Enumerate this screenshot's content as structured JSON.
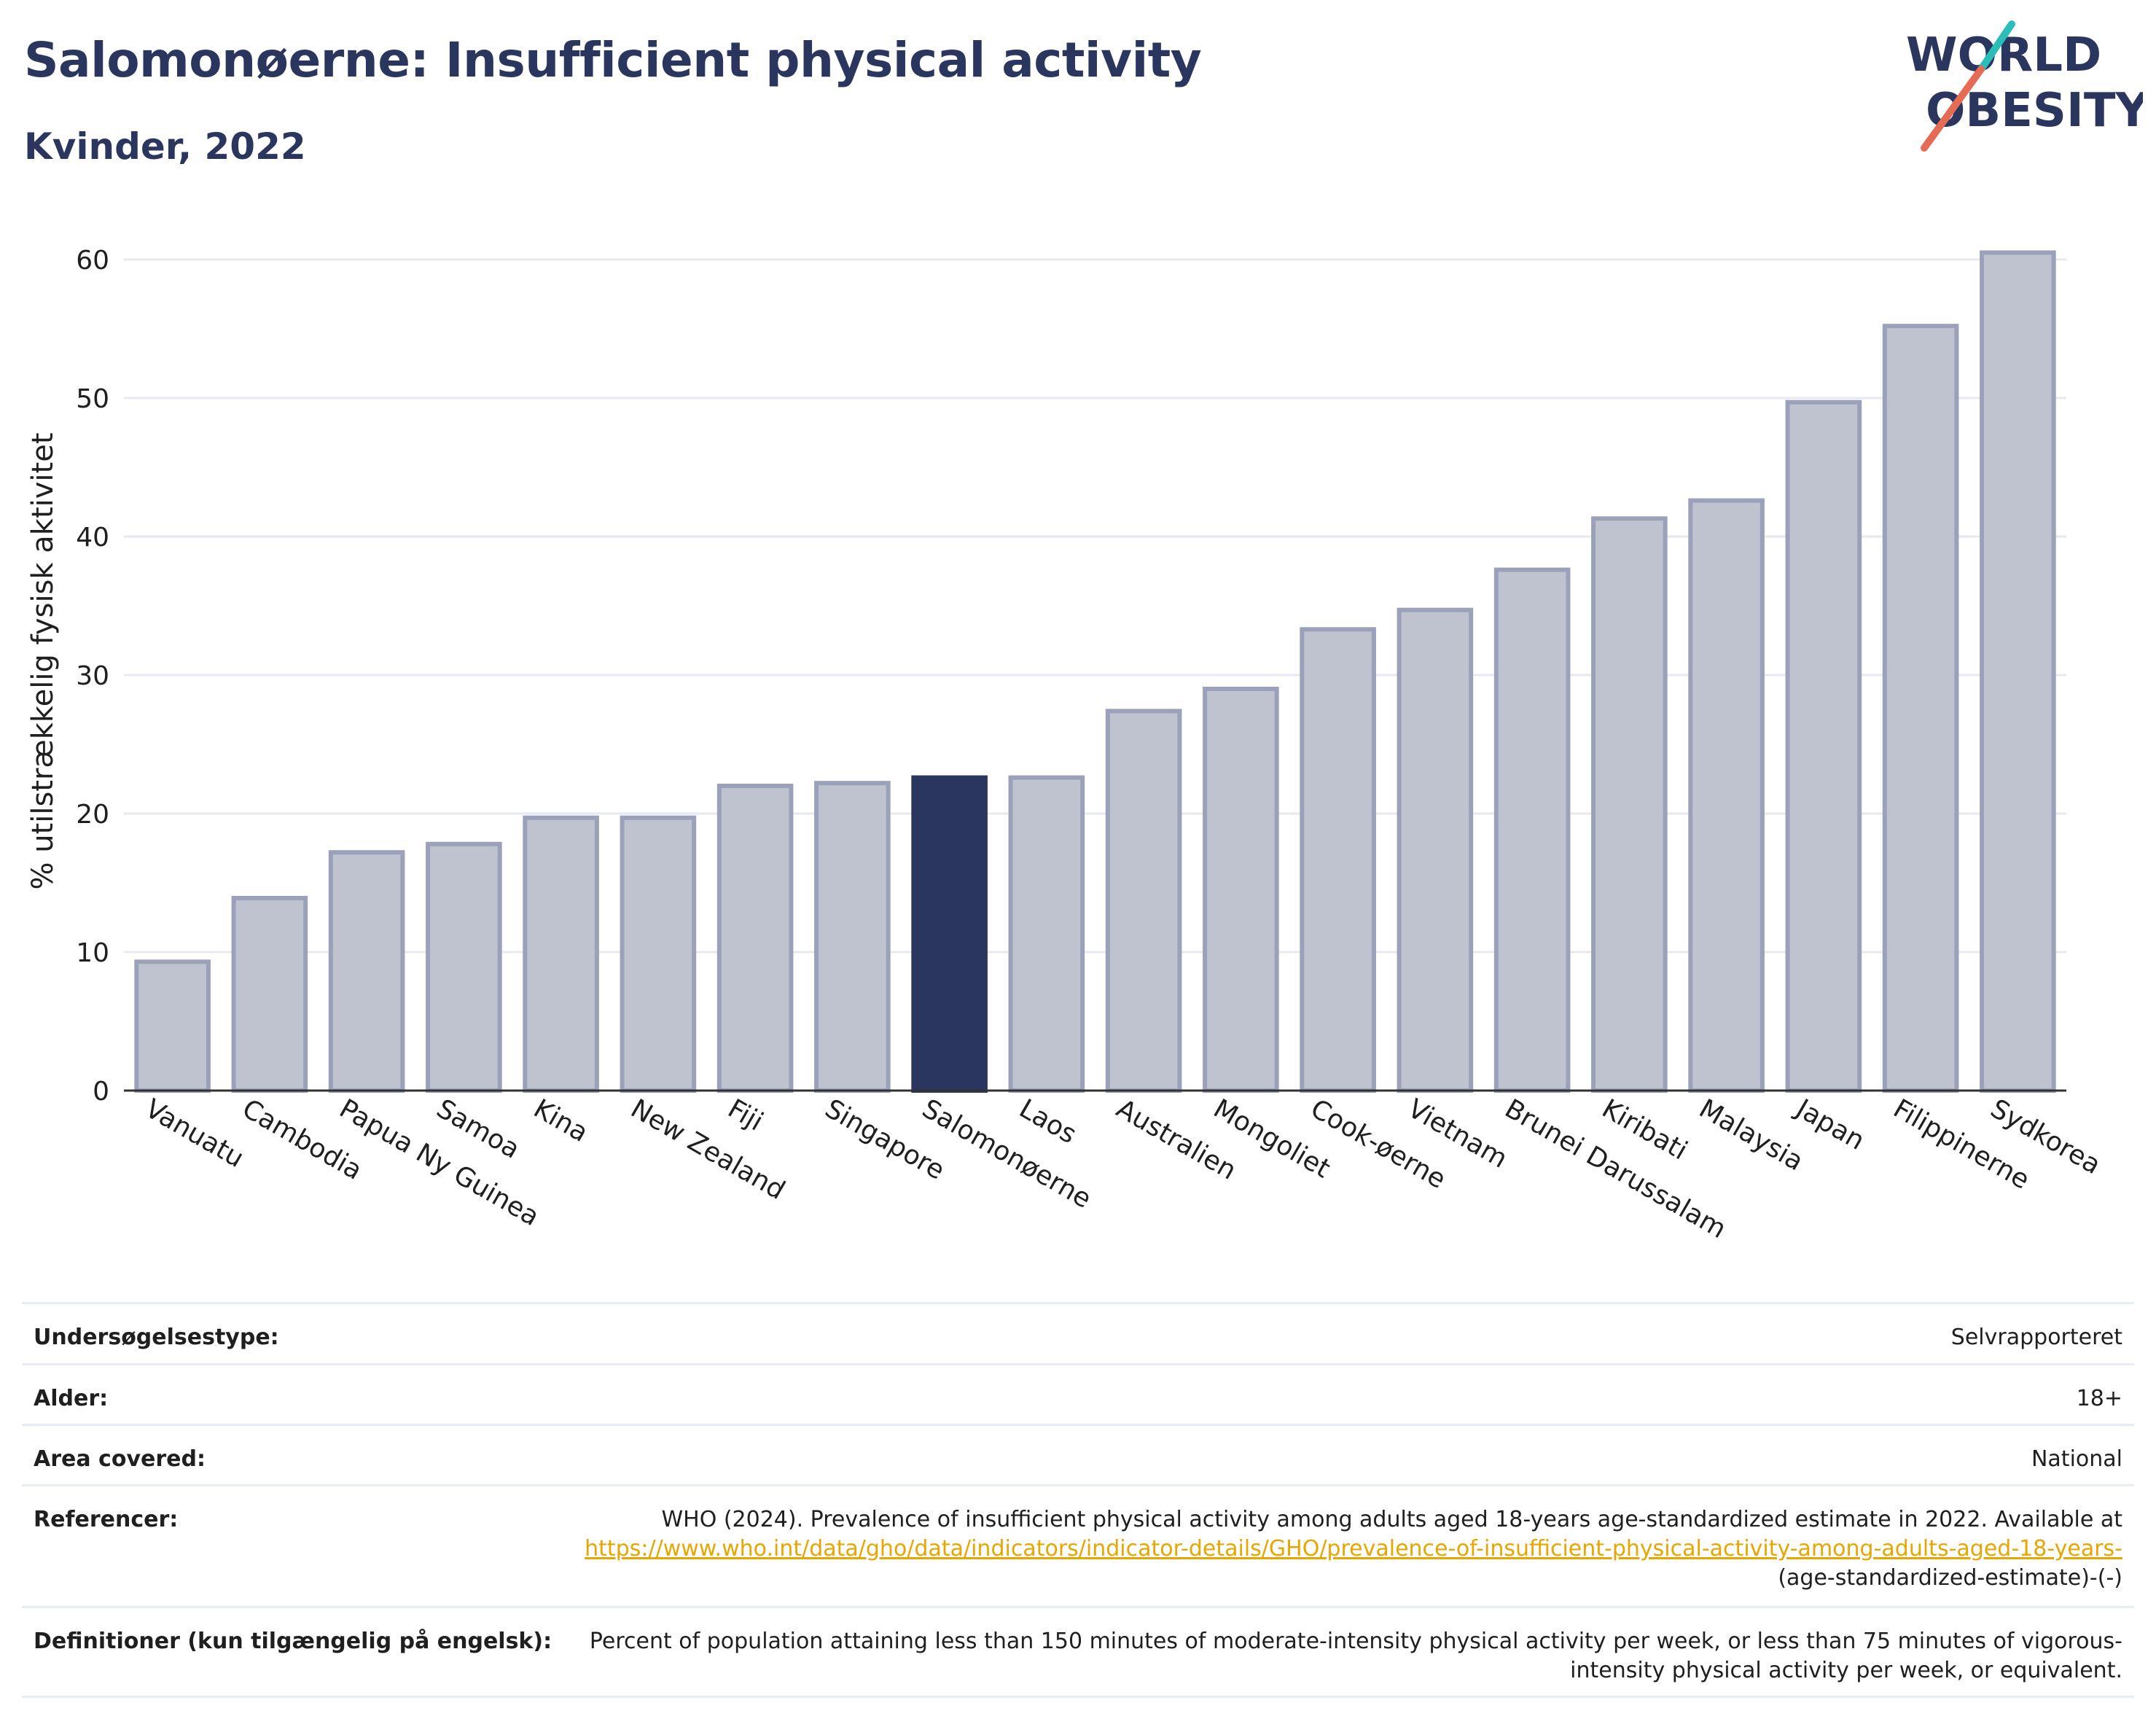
{
  "header": {
    "title": "Salomonøerne: Insufficient physical activity",
    "subtitle": "Kvinder, 2022"
  },
  "logo": {
    "line1": "WORLD",
    "line2": "OBESITY",
    "accent_colors": [
      "#2bbdb8",
      "#e56b54"
    ]
  },
  "colors": {
    "text_primary": "#2b365f",
    "bar_default": "#bfc3d0",
    "bar_border": "#9aa1b8",
    "bar_highlight": "#2b365f",
    "gridline": "#e6e9f0",
    "link": "#e8a600"
  },
  "chart_data": {
    "type": "bar",
    "ylabel": "% utilstrækkelig fysisk aktivitet",
    "ylim": [
      0,
      62
    ],
    "yticks": [
      0,
      10,
      20,
      30,
      40,
      50,
      60
    ],
    "grid": true,
    "highlight": "Salomonøerne",
    "categories": [
      "Vanuatu",
      "Cambodia",
      "Papua Ny Guinea",
      "Samoa",
      "Kina",
      "New Zealand",
      "Fiji",
      "Singapore",
      "Salomonøerne",
      "Laos",
      "Australien",
      "Mongoliet",
      "Cook-øerne",
      "Vietnam",
      "Brunei Darussalam",
      "Kiribati",
      "Malaysia",
      "Japan",
      "Filippinerne",
      "Sydkorea"
    ],
    "values": [
      9.3,
      13.9,
      17.2,
      17.8,
      19.7,
      19.7,
      22.0,
      22.2,
      22.6,
      22.6,
      27.4,
      29.0,
      33.3,
      34.7,
      37.6,
      41.3,
      42.6,
      49.7,
      55.2,
      60.5
    ]
  },
  "info": {
    "survey_type": {
      "label": "Undersøgelsestype:",
      "value": "Selvrapporteret"
    },
    "age": {
      "label": "Alder:",
      "value": "18+"
    },
    "area": {
      "label": "Area covered:",
      "value": "National"
    },
    "references": {
      "label": "Referencer:",
      "text_before": "WHO (2024). Prevalence of insufficient physical activity among adults aged 18-years age-standardized estimate in 2022. Available at",
      "link_text": "https://www.who.int/data/gho/data/indicators/indicator-details/GHO/prevalence-of-insufficient-physical-activity-among-adults-aged-18-years-",
      "text_after": "(age-standardized-estimate)-(-)"
    },
    "definitions": {
      "label": "Definitioner (kun tilgængelig på engelsk):",
      "value": "Percent of population attaining less than 150 minutes of moderate-intensity physical activity per week, or less than 75 minutes of vigorous-intensity physical activity per week, or equivalent."
    }
  }
}
